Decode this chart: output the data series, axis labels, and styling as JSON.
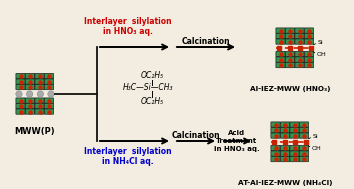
{
  "bg_color": "#f2ede0",
  "top_label_line1": "Interlayer  silylation",
  "top_label_line2": "in HNO₃ aq.",
  "top_label_color": "#cc0000",
  "bottom_label_line1": "Interlayer  silylation",
  "bottom_label_line2": "in NH₄Cl aq.",
  "bottom_label_color": "#0000cc",
  "calc_top": "Calcination",
  "calc_bottom": "Calcination",
  "acid_label_line1": "Acid",
  "acid_label_line2": "Treatment",
  "acid_label_line3": "in HNO₃ aq.",
  "product_top": "Al-IEZ-MWW (HNO₃)",
  "product_bottom": "AT-Al-IEZ-MWW (NH₄Cl)",
  "mww_label": "MWW(P)",
  "silane_oc2h5_top": "OC₂H₅",
  "silane_center": "H₃C—Si—CH₃",
  "silane_oc2h5_bot": "OC₂H₅",
  "frame_color": "#111111",
  "green_color": "#228844",
  "red_color": "#cc2200",
  "gray_circle_color": "#aaaaaa",
  "si_label": "Si",
  "oh_label": "OH"
}
